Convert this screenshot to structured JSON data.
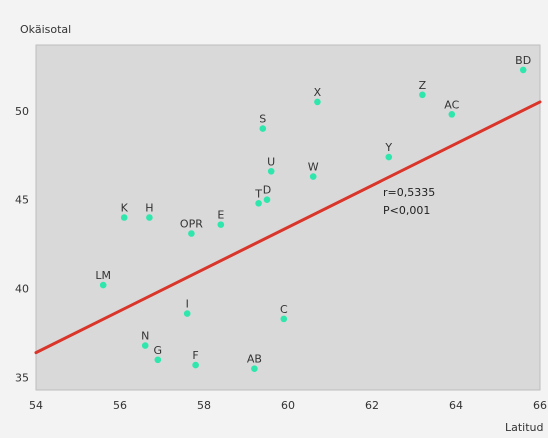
{
  "chart_data": {
    "type": "scatter",
    "ylabel": "Okäisotal",
    "xlabel": "Latitud",
    "xlim": [
      54,
      66
    ],
    "ylim": [
      34.3,
      53.7
    ],
    "x_ticks": [
      54,
      56,
      58,
      60,
      62,
      64,
      66
    ],
    "y_ticks": [
      35,
      40,
      45,
      50
    ],
    "grid": false,
    "colors": {
      "plot_background": "#d9d9d9",
      "page_background": "#f3f3f3",
      "points": "#2fe6ac",
      "regression_line": "#d9352a"
    },
    "points": [
      {
        "label": "BD",
        "x": 65.6,
        "y": 52.3
      },
      {
        "label": "Z",
        "x": 63.2,
        "y": 50.9
      },
      {
        "label": "AC",
        "x": 63.9,
        "y": 49.8
      },
      {
        "label": "X",
        "x": 60.7,
        "y": 50.5
      },
      {
        "label": "S",
        "x": 59.4,
        "y": 49.0
      },
      {
        "label": "Y",
        "x": 62.4,
        "y": 47.4
      },
      {
        "label": "U",
        "x": 59.6,
        "y": 46.6
      },
      {
        "label": "W",
        "x": 60.6,
        "y": 46.3
      },
      {
        "label": "D",
        "x": 59.5,
        "y": 45.0
      },
      {
        "label": "T",
        "x": 59.3,
        "y": 44.8
      },
      {
        "label": "K",
        "x": 56.1,
        "y": 44.0
      },
      {
        "label": "H",
        "x": 56.7,
        "y": 44.0
      },
      {
        "label": "E",
        "x": 58.4,
        "y": 43.6
      },
      {
        "label": "OPR",
        "x": 57.7,
        "y": 43.1
      },
      {
        "label": "LM",
        "x": 55.6,
        "y": 40.2
      },
      {
        "label": "I",
        "x": 57.6,
        "y": 38.6
      },
      {
        "label": "C",
        "x": 59.9,
        "y": 38.3
      },
      {
        "label": "N",
        "x": 56.6,
        "y": 36.8
      },
      {
        "label": "G",
        "x": 56.9,
        "y": 36.0
      },
      {
        "label": "F",
        "x": 57.8,
        "y": 35.7
      },
      {
        "label": "AB",
        "x": 59.2,
        "y": 35.5
      }
    ],
    "regression_line": {
      "x": [
        54,
        66
      ],
      "y": [
        36.4,
        50.5
      ]
    },
    "annotations": [
      "r=0,5335",
      "P<0,001"
    ]
  }
}
